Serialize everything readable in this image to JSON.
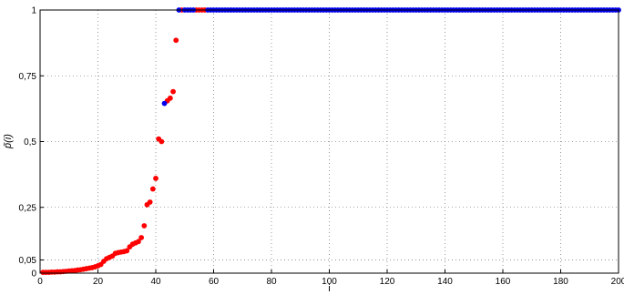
{
  "chart_data": {
    "type": "scatter",
    "title": "",
    "xlabel": "i",
    "ylabel": "p̃(i)",
    "xlim": [
      0,
      200
    ],
    "ylim": [
      0,
      1
    ],
    "grid": true,
    "x_ticks": [
      0,
      20,
      40,
      60,
      80,
      100,
      120,
      140,
      160,
      180,
      200
    ],
    "x_tick_labels": [
      "0",
      "20",
      "40",
      "60",
      "80",
      "100",
      "120",
      "140",
      "160",
      "180",
      "200"
    ],
    "y_ticks": [
      0,
      0.05,
      0.25,
      0.5,
      0.75,
      1
    ],
    "y_tick_labels": [
      "0",
      "0,05",
      "0,25",
      "0,5",
      "0,75",
      "1"
    ],
    "series": [
      {
        "color": "#ff0000",
        "x": [
          1,
          2,
          3,
          4,
          5,
          6,
          7,
          8,
          9,
          10,
          11,
          12,
          13,
          14,
          15,
          16,
          17,
          18,
          19,
          20,
          21,
          22,
          23,
          24,
          25,
          26,
          27,
          28,
          29,
          30,
          31,
          32,
          33,
          34,
          35,
          36,
          37,
          38,
          39,
          40,
          41,
          42,
          44,
          45,
          46,
          47,
          49,
          54,
          55,
          56,
          57
        ],
        "y": [
          0.003,
          0.003,
          0.003,
          0.004,
          0.004,
          0.005,
          0.005,
          0.006,
          0.007,
          0.008,
          0.009,
          0.01,
          0.012,
          0.013,
          0.015,
          0.017,
          0.019,
          0.021,
          0.024,
          0.028,
          0.033,
          0.045,
          0.055,
          0.06,
          0.065,
          0.075,
          0.078,
          0.08,
          0.082,
          0.085,
          0.1,
          0.11,
          0.115,
          0.12,
          0.135,
          0.18,
          0.26,
          0.27,
          0.32,
          0.36,
          0.51,
          0.5,
          0.655,
          0.665,
          0.69,
          0.885,
          1,
          1,
          1,
          1,
          1
        ]
      },
      {
        "color": "#0000ee",
        "x": [
          43,
          48,
          50,
          51,
          52,
          53,
          58,
          59,
          60,
          61,
          62,
          63,
          64,
          65,
          66,
          67,
          68,
          69,
          70,
          71,
          72,
          73,
          74,
          75,
          76,
          77,
          78,
          79,
          80,
          81,
          82,
          83,
          84,
          85,
          86,
          87,
          88,
          89,
          90,
          91,
          92,
          93,
          94,
          95,
          96,
          97,
          98,
          99,
          100,
          101,
          102,
          103,
          104,
          105,
          106,
          107,
          108,
          109,
          110,
          111,
          112,
          113,
          114,
          115,
          116,
          117,
          118,
          119,
          120,
          121,
          122,
          123,
          124,
          125,
          126,
          127,
          128,
          129,
          130,
          131,
          132,
          133,
          134,
          135,
          136,
          137,
          138,
          139,
          140,
          141,
          142,
          143,
          144,
          145,
          146,
          147,
          148,
          149,
          150,
          151,
          152,
          153,
          154,
          155,
          156,
          157,
          158,
          159,
          160,
          161,
          162,
          163,
          164,
          165,
          166,
          167,
          168,
          169,
          170,
          171,
          172,
          173,
          174,
          175,
          176,
          177,
          178,
          179,
          180,
          181,
          182,
          183,
          184,
          185,
          186,
          187,
          188,
          189,
          190,
          191,
          192,
          193,
          194,
          195,
          196,
          197,
          198,
          199,
          200
        ],
        "y": [
          0.645,
          1,
          1,
          1,
          1,
          1,
          1,
          1,
          1,
          1,
          1,
          1,
          1,
          1,
          1,
          1,
          1,
          1,
          1,
          1,
          1,
          1,
          1,
          1,
          1,
          1,
          1,
          1,
          1,
          1,
          1,
          1,
          1,
          1,
          1,
          1,
          1,
          1,
          1,
          1,
          1,
          1,
          1,
          1,
          1,
          1,
          1,
          1,
          1,
          1,
          1,
          1,
          1,
          1,
          1,
          1,
          1,
          1,
          1,
          1,
          1,
          1,
          1,
          1,
          1,
          1,
          1,
          1,
          1,
          1,
          1,
          1,
          1,
          1,
          1,
          1,
          1,
          1,
          1,
          1,
          1,
          1,
          1,
          1,
          1,
          1,
          1,
          1,
          1,
          1,
          1,
          1,
          1,
          1,
          1,
          1,
          1,
          1,
          1,
          1,
          1,
          1,
          1,
          1,
          1,
          1,
          1,
          1,
          1,
          1,
          1,
          1,
          1,
          1,
          1,
          1,
          1,
          1,
          1,
          1,
          1,
          1,
          1,
          1,
          1,
          1,
          1,
          1,
          1,
          1,
          1,
          1,
          1,
          1,
          1,
          1,
          1,
          1,
          1,
          1,
          1,
          1,
          1,
          1,
          1,
          1,
          1,
          1,
          1
        ]
      }
    ]
  }
}
